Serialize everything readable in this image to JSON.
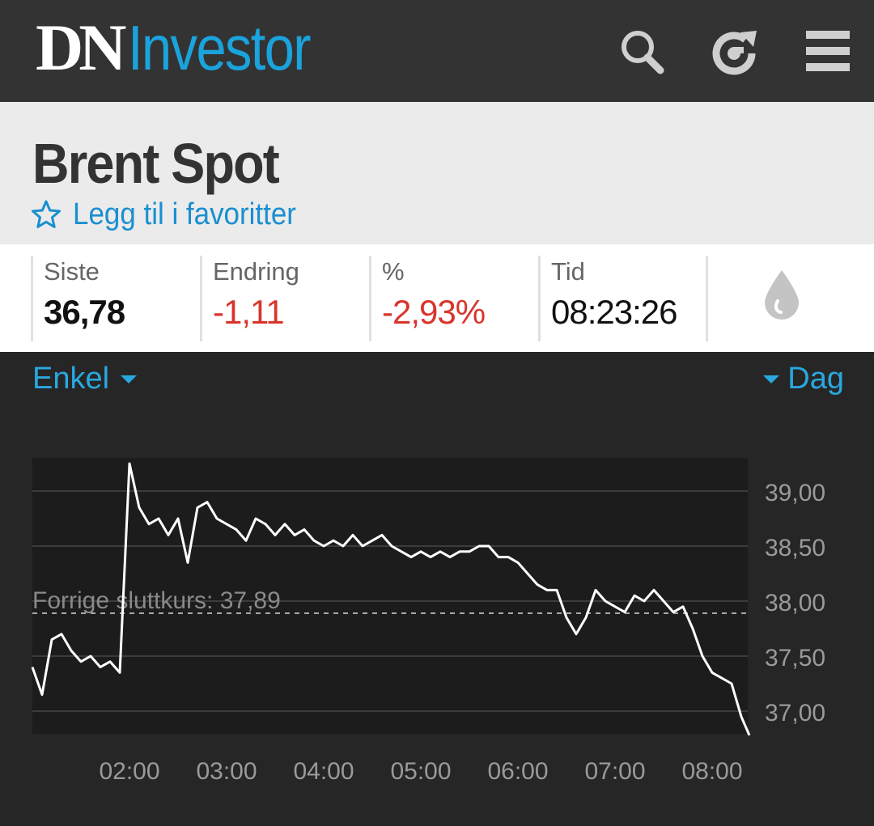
{
  "app": {
    "logo_dn": "DN",
    "logo_investor": "Investor",
    "icons": [
      "search-icon",
      "refresh-icon",
      "menu-icon"
    ]
  },
  "instrument": {
    "title": "Brent Spot",
    "favorite_label": "Legg til i favoritter"
  },
  "stats": [
    {
      "label": "Siste",
      "value": "36,78",
      "color": "#111111"
    },
    {
      "label": "Endring",
      "value": "-1,11",
      "color": "#d9342b"
    },
    {
      "label": "%",
      "value": "-2,93%",
      "color": "#d9342b"
    },
    {
      "label": "Tid",
      "value": "08:23:26",
      "color": "#111111"
    }
  ],
  "stats_icon": "oil-drop-icon",
  "controls": {
    "chart_type": "Enkel",
    "period": "Dag"
  },
  "colors": {
    "accent": "#1aa3dc",
    "negative": "#d9342b",
    "line": "#ffffff"
  },
  "chart_data": {
    "type": "line",
    "title": "",
    "xlabel": "",
    "ylabel": "",
    "x_ticks": [
      "02:00",
      "03:00",
      "04:00",
      "05:00",
      "06:00",
      "07:00",
      "08:00"
    ],
    "y_ticks": [
      "39,00",
      "38,50",
      "38,00",
      "37,50",
      "37,00"
    ],
    "ylim": [
      36.8,
      39.3
    ],
    "grid": true,
    "reference_line": {
      "label": "Forrige sluttkurs: 37,89",
      "value": 37.89
    },
    "series": [
      {
        "x": [
          "01:00",
          "01:06",
          "01:12",
          "01:18",
          "01:24",
          "01:30",
          "01:36",
          "01:42",
          "01:48",
          "01:54",
          "02:00",
          "02:06",
          "02:12",
          "02:18",
          "02:24",
          "02:30",
          "02:36",
          "02:42",
          "02:48",
          "02:54",
          "03:00",
          "03:06",
          "03:12",
          "03:18",
          "03:24",
          "03:30",
          "03:36",
          "03:42",
          "03:48",
          "03:54",
          "04:00",
          "04:06",
          "04:12",
          "04:18",
          "04:24",
          "04:30",
          "04:36",
          "04:42",
          "04:48",
          "04:54",
          "05:00",
          "05:06",
          "05:12",
          "05:18",
          "05:24",
          "05:30",
          "05:36",
          "05:42",
          "05:48",
          "05:54",
          "06:00",
          "06:06",
          "06:12",
          "06:18",
          "06:24",
          "06:30",
          "06:36",
          "06:42",
          "06:48",
          "06:54",
          "07:00",
          "07:06",
          "07:12",
          "07:18",
          "07:24",
          "07:30",
          "07:36",
          "07:42",
          "07:48",
          "07:54",
          "08:00",
          "08:06",
          "08:12",
          "08:18",
          "08:23"
        ],
        "values": [
          37.4,
          37.15,
          37.65,
          37.7,
          37.55,
          37.45,
          37.5,
          37.4,
          37.45,
          37.35,
          39.25,
          38.85,
          38.7,
          38.75,
          38.6,
          38.75,
          38.35,
          38.85,
          38.9,
          38.75,
          38.7,
          38.65,
          38.55,
          38.75,
          38.7,
          38.6,
          38.7,
          38.6,
          38.65,
          38.55,
          38.5,
          38.55,
          38.5,
          38.6,
          38.5,
          38.55,
          38.6,
          38.5,
          38.45,
          38.4,
          38.45,
          38.4,
          38.45,
          38.4,
          38.45,
          38.45,
          38.5,
          38.5,
          38.4,
          38.4,
          38.35,
          38.25,
          38.15,
          38.1,
          38.1,
          37.85,
          37.7,
          37.85,
          38.1,
          38.0,
          37.95,
          37.9,
          38.05,
          38.0,
          38.1,
          38.0,
          37.9,
          37.95,
          37.75,
          37.5,
          37.35,
          37.3,
          37.25,
          36.95,
          36.78
        ]
      }
    ]
  }
}
